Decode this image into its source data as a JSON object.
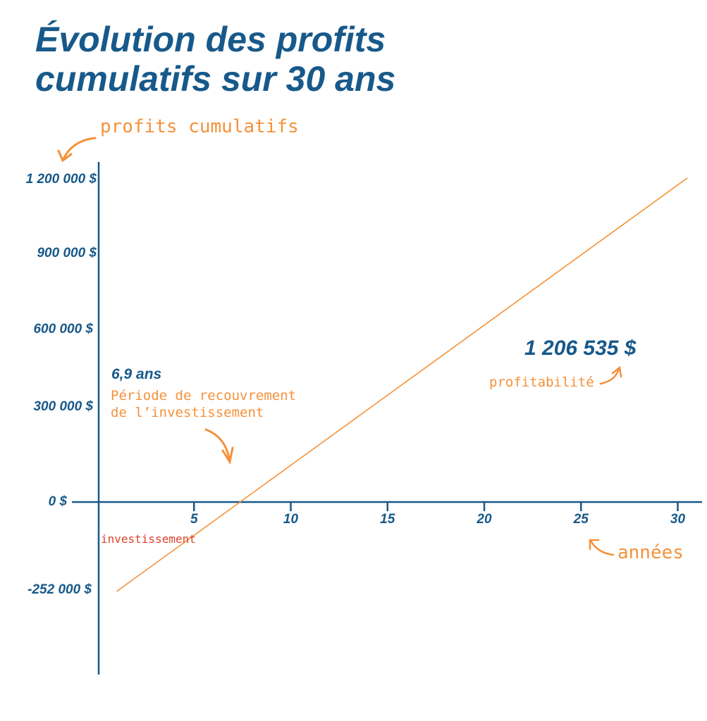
{
  "title_line1": "Évolution des profits",
  "title_line2": "cumulatifs sur 30 ans",
  "colors": {
    "axis": "#17598a",
    "line": "#f5913a",
    "annotation": "#f5913a",
    "investment": "#e0402a"
  },
  "chart_data": {
    "type": "line",
    "title": "Évolution des profits cumulatifs sur 30 ans",
    "ylabel": "profits cumulatifs",
    "xlabel": "années",
    "x_ticks": [
      "5",
      "10",
      "15",
      "20",
      "25",
      "30"
    ],
    "y_ticks": [
      "1 200 000 $",
      "900 000 $",
      "600 000 $",
      "300 000 $",
      "0 $",
      "-252 000 $"
    ],
    "y_tick_values": [
      1200000,
      900000,
      600000,
      300000,
      0,
      -252000
    ],
    "xlim": [
      0,
      31
    ],
    "series": [
      {
        "name": "profits cumulatifs",
        "x": [
          1,
          30.5
        ],
        "y": [
          -252000,
          1206535
        ]
      }
    ],
    "annotations": {
      "payback_value": "6,9 ans",
      "payback_label_1": "Période de recouvrement",
      "payback_label_2": "de l’investissement",
      "final_value": "1 206 535 $",
      "final_label": "profitabilité",
      "investment_label": "investissement"
    }
  }
}
